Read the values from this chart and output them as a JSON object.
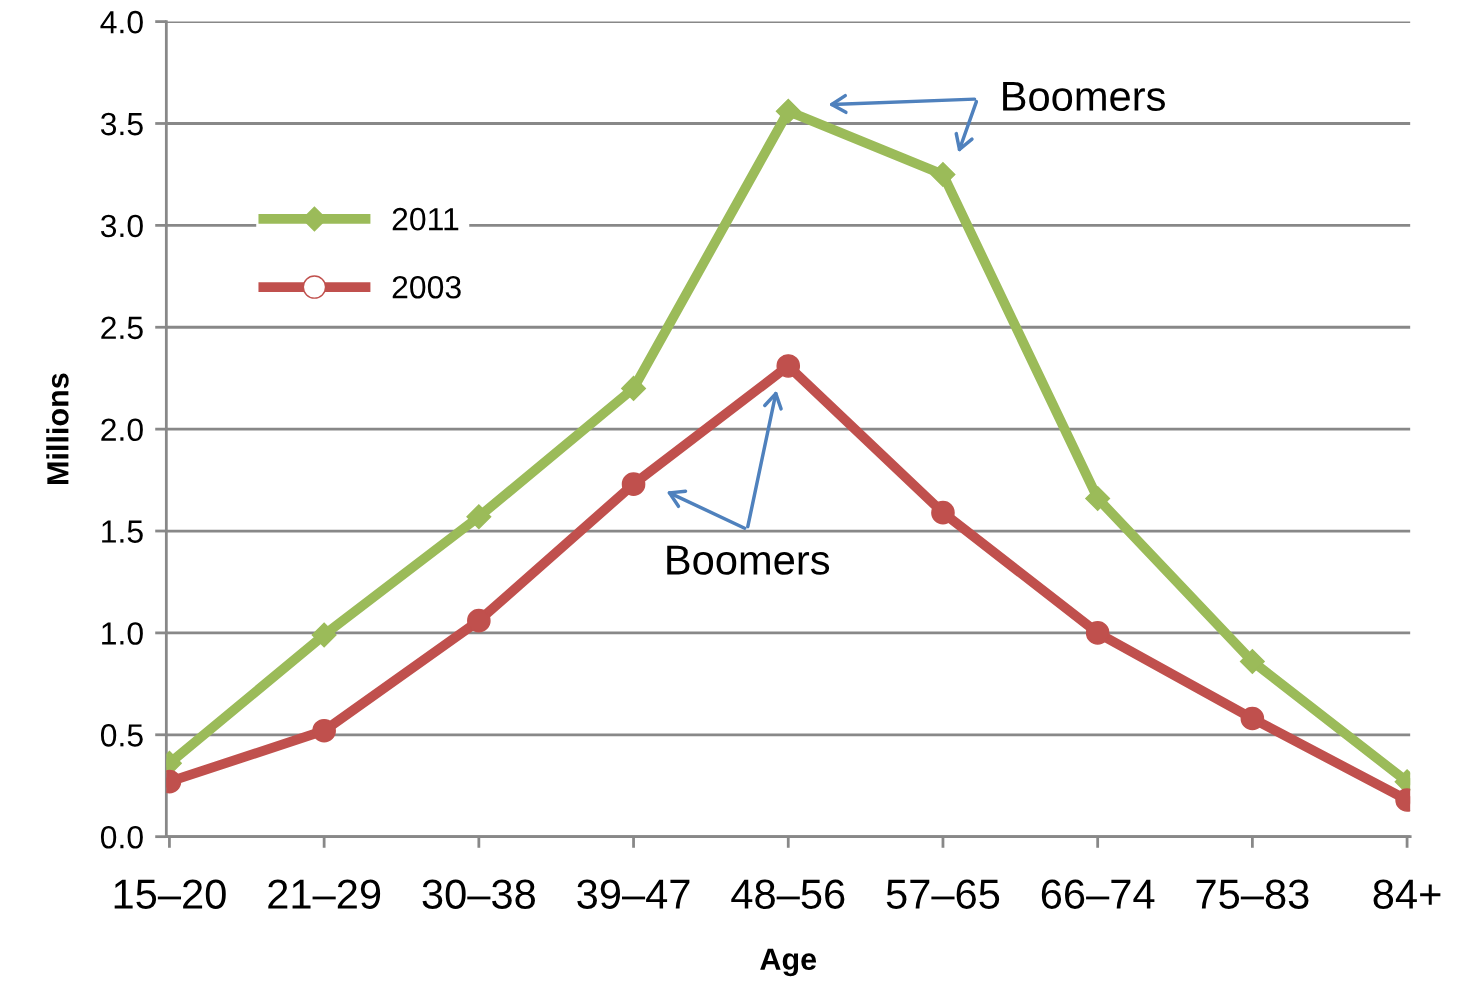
{
  "chart_data": {
    "type": "line",
    "xlabel": "Age",
    "ylabel": "Millions",
    "categories": [
      "15–20",
      "21–29",
      "30–38",
      "39–47",
      "48–56",
      "57–65",
      "66–74",
      "75–83",
      "84+"
    ],
    "series": [
      {
        "name": "2011",
        "color": "#9bbb59",
        "marker": "diamond",
        "values": [
          0.36,
          0.99,
          1.57,
          2.2,
          3.56,
          3.25,
          1.66,
          0.86,
          0.27
        ]
      },
      {
        "name": "2003",
        "color": "#c0504d",
        "marker": "circle",
        "values": [
          0.27,
          0.52,
          1.06,
          1.73,
          2.31,
          1.59,
          1.0,
          0.58,
          0.18
        ]
      }
    ],
    "ylim": [
      0,
      4
    ],
    "yticks": [
      {
        "value": 0,
        "label": "0.0"
      },
      0.5,
      {
        "value": 1,
        "label": "1.0"
      },
      1.5,
      {
        "value": 2,
        "label": "2.0"
      },
      2.5,
      {
        "value": 3,
        "label": "3.0"
      },
      3.5,
      {
        "value": 4,
        "label": "4.0"
      }
    ],
    "grid": "y",
    "legend": "top left",
    "line_style": "solid",
    "annotations": [
      "Boomers",
      "Boomers"
    ]
  }
}
